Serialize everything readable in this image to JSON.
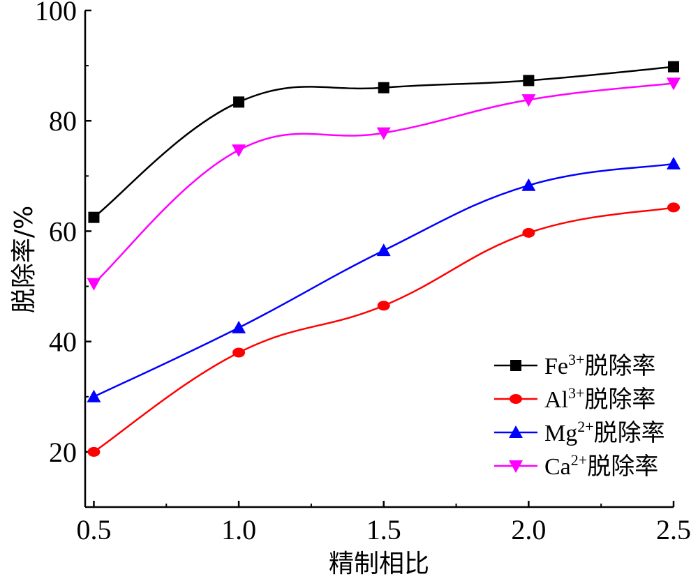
{
  "chart_data": {
    "type": "line",
    "xlabel": "精制相比",
    "ylabel": "脱除率/%",
    "xlim": [
      0.47,
      2.5
    ],
    "ylim": [
      10,
      100
    ],
    "x_ticks": [
      "0.5",
      "1.0",
      "1.5",
      "2.0",
      "2.5"
    ],
    "y_ticks": [
      "20",
      "40",
      "60",
      "80",
      "100"
    ],
    "x": [
      0.5,
      1.0,
      1.5,
      2.0,
      2.5
    ],
    "legend_position": "bottom-right",
    "smooth": true,
    "series": [
      {
        "name": "Fe³⁺脱除率",
        "ion": "Fe",
        "charge": "3+",
        "suffix": "脱除率",
        "color": "#000000",
        "marker": "square",
        "values": [
          62.5,
          83.4,
          86.0,
          87.3,
          89.8
        ]
      },
      {
        "name": "Al³⁺脱除率",
        "ion": "Al",
        "charge": "3+",
        "suffix": "脱除率",
        "color": "#ff0000",
        "marker": "circle",
        "values": [
          20.0,
          38.0,
          46.5,
          59.7,
          64.3
        ]
      },
      {
        "name": "Mg²⁺脱除率",
        "ion": "Mg",
        "charge": "2+",
        "suffix": "脱除率",
        "color": "#0000ff",
        "marker": "triangle-up",
        "values": [
          30.0,
          42.5,
          56.5,
          68.3,
          72.2
        ]
      },
      {
        "name": "Ca²⁺脱除率",
        "ion": "Ca",
        "charge": "2+",
        "suffix": "脱除率",
        "color": "#ff00ff",
        "marker": "triangle-down",
        "values": [
          50.5,
          74.7,
          77.8,
          83.8,
          86.8
        ]
      }
    ]
  }
}
